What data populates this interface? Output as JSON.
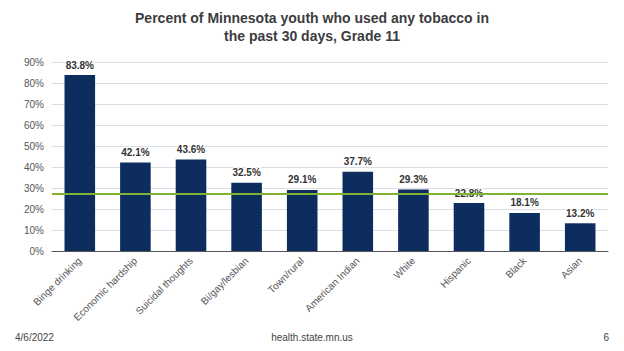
{
  "chart_data": {
    "type": "bar",
    "title": "Percent of Minnesota youth who used any tobacco in\nthe past 30 days, Grade 11",
    "categories": [
      "Binge drinking",
      "Economic hardship",
      "Suicidal thoughts",
      "Bi/gay/lesbian",
      "Town/rural",
      "American Indian",
      "White",
      "Hispanic",
      "Black",
      "Asian"
    ],
    "values": [
      83.8,
      42.1,
      43.6,
      32.5,
      29.1,
      37.7,
      29.3,
      22.8,
      18.1,
      13.2
    ],
    "value_labels": [
      "83.8%",
      "42.1%",
      "43.6%",
      "32.5%",
      "29.1%",
      "37.7%",
      "29.3%",
      "22.8%",
      "18.1%",
      "13.2%"
    ],
    "data_labels": true,
    "color": "#0d2d5e",
    "ylim": [
      0,
      90
    ],
    "yticks": [
      {
        "value": 0,
        "label": "0%"
      },
      {
        "value": 10,
        "label": "10%"
      },
      {
        "value": 20,
        "label": "20%"
      },
      {
        "value": 30,
        "label": "30%"
      },
      {
        "value": 40,
        "label": "40%"
      },
      {
        "value": 50,
        "label": "50%"
      },
      {
        "value": 60,
        "label": "60%"
      },
      {
        "value": 70,
        "label": "70%"
      },
      {
        "value": 80,
        "label": "80%"
      },
      {
        "value": 90,
        "label": "90%"
      }
    ],
    "grid": true,
    "reference_lines": [
      {
        "value": 27.5,
        "color": "#80b332"
      }
    ],
    "footer": [
      "4/6/2022",
      "health.state.mn.us",
      "6"
    ]
  }
}
